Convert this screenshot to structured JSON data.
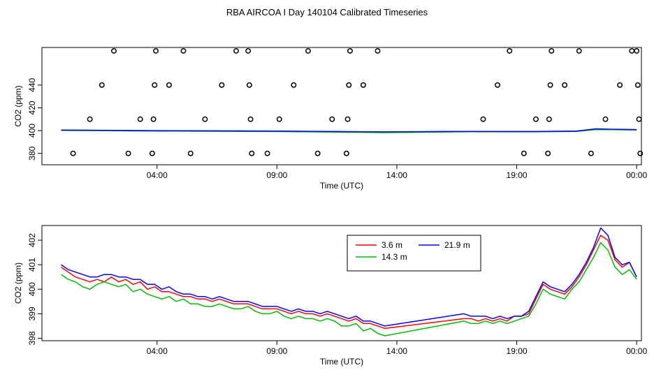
{
  "title": "RBA AIRCOA I  Day 140104  Calibrated Timeseries",
  "chart_data": [
    {
      "type": "scatter",
      "xlabel": "Time (UTC)",
      "ylabel": "CO2 (ppm)",
      "x_unit": "hours UTC",
      "xlim": [
        -0.8,
        24.2
      ],
      "ylim": [
        370,
        473
      ],
      "x_ticks": [
        {
          "v": 4,
          "label": "04:00"
        },
        {
          "v": 9,
          "label": "09:00"
        },
        {
          "v": 14,
          "label": "14:00"
        },
        {
          "v": 19,
          "label": "19:00"
        },
        {
          "v": 24,
          "label": "00:00"
        }
      ],
      "y_ticks": [
        {
          "v": 380,
          "label": "380"
        },
        {
          "v": 400,
          "label": "400"
        },
        {
          "v": 420,
          "label": "420"
        },
        {
          "v": 440,
          "label": "440"
        }
      ],
      "points": [
        [
          0.5,
          380
        ],
        [
          1.2,
          410
        ],
        [
          1.7,
          440
        ],
        [
          2.2,
          470
        ],
        [
          2.8,
          380
        ],
        [
          3.3,
          410
        ],
        [
          3.8,
          380
        ],
        [
          3.85,
          410
        ],
        [
          3.9,
          440
        ],
        [
          3.95,
          470
        ],
        [
          4.5,
          440
        ],
        [
          5.1,
          470
        ],
        [
          5.4,
          380
        ],
        [
          6.0,
          410
        ],
        [
          6.7,
          440
        ],
        [
          7.3,
          470
        ],
        [
          7.8,
          470
        ],
        [
          7.85,
          440
        ],
        [
          7.9,
          410
        ],
        [
          7.95,
          380
        ],
        [
          8.6,
          380
        ],
        [
          9.1,
          410
        ],
        [
          9.7,
          440
        ],
        [
          10.3,
          470
        ],
        [
          10.7,
          380
        ],
        [
          11.3,
          410
        ],
        [
          11.9,
          380
        ],
        [
          11.95,
          410
        ],
        [
          12.0,
          440
        ],
        [
          12.05,
          470
        ],
        [
          12.6,
          440
        ],
        [
          13.2,
          470
        ],
        [
          17.6,
          410
        ],
        [
          18.2,
          440
        ],
        [
          18.7,
          470
        ],
        [
          19.3,
          380
        ],
        [
          19.8,
          410
        ],
        [
          20.3,
          380
        ],
        [
          20.35,
          410
        ],
        [
          20.4,
          440
        ],
        [
          20.45,
          470
        ],
        [
          21.0,
          440
        ],
        [
          21.6,
          470
        ],
        [
          22.1,
          380
        ],
        [
          22.7,
          410
        ],
        [
          23.3,
          440
        ],
        [
          23.8,
          470
        ],
        [
          24.0,
          470
        ],
        [
          24.05,
          440
        ],
        [
          24.1,
          410
        ],
        [
          24.15,
          380
        ]
      ],
      "series": [
        {
          "name": "3.6 m",
          "color": "#ff0000",
          "x": [
            0,
            4,
            9,
            13.5,
            17,
            19.5,
            21.5,
            22.3,
            23,
            24
          ],
          "values": [
            400.3,
            399.9,
            399.5,
            398.7,
            399.2,
            399.1,
            399.5,
            401.2,
            401.0,
            400.8
          ]
        },
        {
          "name": "14.3 m",
          "color": "#00bb00",
          "x": [
            0,
            4,
            9,
            13.5,
            17,
            19.5,
            21.5,
            22.3,
            23,
            24
          ],
          "values": [
            400.1,
            399.6,
            399.2,
            398.2,
            399.0,
            398.9,
            399.3,
            400.9,
            400.8,
            400.5
          ]
        },
        {
          "name": "21.9 m",
          "color": "#0000ff",
          "x": [
            0,
            4,
            9,
            13.5,
            17,
            19.5,
            21.5,
            22.3,
            23,
            24
          ],
          "values": [
            400.5,
            400.0,
            399.6,
            398.9,
            399.3,
            399.2,
            399.6,
            401.6,
            401.2,
            400.9
          ]
        }
      ]
    },
    {
      "type": "line",
      "xlabel": "Time (UTC)",
      "ylabel": "CO2 (ppm)",
      "x_unit": "hours UTC",
      "xlim": [
        -0.8,
        24.2
      ],
      "ylim": [
        397.9,
        402.6
      ],
      "x_ticks": [
        {
          "v": 4,
          "label": "04:00"
        },
        {
          "v": 9,
          "label": "09:00"
        },
        {
          "v": 14,
          "label": "14:00"
        },
        {
          "v": 19,
          "label": "19:00"
        },
        {
          "v": 24,
          "label": "00:00"
        }
      ],
      "y_ticks": [
        {
          "v": 398,
          "label": "398"
        },
        {
          "v": 399,
          "label": "399"
        },
        {
          "v": 400,
          "label": "400"
        },
        {
          "v": 401,
          "label": "401"
        },
        {
          "v": 402,
          "label": "402"
        }
      ],
      "legend": {
        "position": "top-right",
        "entries": [
          "3.6 m",
          "21.9 m",
          "14.3 m"
        ]
      },
      "series": [
        {
          "name": "3.6 m",
          "color": "#ff0000",
          "x": [
            0,
            0.3,
            0.6,
            0.9,
            1.2,
            1.5,
            1.8,
            2.1,
            2.4,
            2.7,
            3.0,
            3.3,
            3.6,
            3.9,
            4.2,
            4.5,
            4.8,
            5.1,
            5.4,
            5.7,
            6.0,
            6.3,
            6.6,
            6.9,
            7.2,
            7.5,
            7.8,
            8.1,
            8.4,
            8.7,
            9.0,
            9.3,
            9.6,
            9.9,
            10.2,
            10.5,
            10.8,
            11.1,
            11.4,
            11.7,
            12.0,
            12.3,
            12.6,
            12.9,
            13.2,
            13.5,
            16.8,
            17.1,
            17.4,
            17.7,
            18.0,
            18.3,
            18.6,
            18.9,
            19.2,
            19.5,
            19.8,
            20.1,
            20.4,
            20.7,
            21.0,
            21.3,
            21.6,
            21.9,
            22.2,
            22.5,
            22.8,
            23.1,
            23.4,
            23.7,
            24.0
          ],
          "values": [
            400.9,
            400.7,
            400.5,
            400.4,
            400.3,
            400.4,
            400.3,
            400.5,
            400.3,
            400.4,
            400.2,
            400.3,
            400.0,
            400.1,
            399.9,
            399.9,
            399.8,
            399.7,
            399.7,
            399.6,
            399.6,
            399.5,
            399.6,
            399.5,
            399.4,
            399.4,
            399.4,
            399.3,
            399.2,
            399.2,
            399.2,
            399.1,
            399.0,
            399.1,
            399.0,
            399.0,
            398.9,
            399.0,
            398.9,
            398.8,
            398.7,
            398.8,
            398.6,
            398.6,
            398.5,
            398.4,
            398.8,
            398.8,
            398.7,
            398.8,
            398.7,
            398.8,
            398.7,
            398.9,
            398.9,
            399.0,
            399.6,
            400.2,
            400.0,
            399.9,
            399.8,
            400.1,
            400.5,
            401.0,
            401.6,
            402.2,
            402.0,
            401.2,
            400.9,
            401.1,
            400.5
          ]
        },
        {
          "name": "14.3 m",
          "color": "#00bb00",
          "x": [
            0,
            0.3,
            0.6,
            0.9,
            1.2,
            1.5,
            1.8,
            2.1,
            2.4,
            2.7,
            3.0,
            3.3,
            3.6,
            3.9,
            4.2,
            4.5,
            4.8,
            5.1,
            5.4,
            5.7,
            6.0,
            6.3,
            6.6,
            6.9,
            7.2,
            7.5,
            7.8,
            8.1,
            8.4,
            8.7,
            9.0,
            9.3,
            9.6,
            9.9,
            10.2,
            10.5,
            10.8,
            11.1,
            11.4,
            11.7,
            12.0,
            12.3,
            12.6,
            12.9,
            13.2,
            13.5,
            16.8,
            17.1,
            17.4,
            17.7,
            18.0,
            18.3,
            18.6,
            18.9,
            19.2,
            19.5,
            19.8,
            20.1,
            20.4,
            20.7,
            21.0,
            21.3,
            21.6,
            21.9,
            22.2,
            22.5,
            22.8,
            23.1,
            23.4,
            23.7,
            24.0
          ],
          "values": [
            400.6,
            400.4,
            400.3,
            400.1,
            400.0,
            400.2,
            400.3,
            400.2,
            400.1,
            400.2,
            399.9,
            400.0,
            399.8,
            399.7,
            399.6,
            399.7,
            399.5,
            399.6,
            399.4,
            399.4,
            399.3,
            399.3,
            399.4,
            399.3,
            399.2,
            399.2,
            399.3,
            399.1,
            399.0,
            399.0,
            399.1,
            398.9,
            398.8,
            398.9,
            398.8,
            398.8,
            398.7,
            398.8,
            398.7,
            398.5,
            398.5,
            398.6,
            398.3,
            398.4,
            398.2,
            398.1,
            398.7,
            398.6,
            398.6,
            398.7,
            398.6,
            398.7,
            398.6,
            398.7,
            398.8,
            398.9,
            399.4,
            400.0,
            399.8,
            399.7,
            399.6,
            400.0,
            400.3,
            400.8,
            401.3,
            401.9,
            401.6,
            400.9,
            400.6,
            400.8,
            400.4
          ]
        },
        {
          "name": "21.9 m",
          "color": "#0000ff",
          "x": [
            0,
            0.3,
            0.6,
            0.9,
            1.2,
            1.5,
            1.8,
            2.1,
            2.4,
            2.7,
            3.0,
            3.3,
            3.6,
            3.9,
            4.2,
            4.5,
            4.8,
            5.1,
            5.4,
            5.7,
            6.0,
            6.3,
            6.6,
            6.9,
            7.2,
            7.5,
            7.8,
            8.1,
            8.4,
            8.7,
            9.0,
            9.3,
            9.6,
            9.9,
            10.2,
            10.5,
            10.8,
            11.1,
            11.4,
            11.7,
            12.0,
            12.3,
            12.6,
            12.9,
            13.2,
            13.5,
            16.8,
            17.1,
            17.4,
            17.7,
            18.0,
            18.3,
            18.6,
            18.9,
            19.2,
            19.5,
            19.8,
            20.1,
            20.4,
            20.7,
            21.0,
            21.3,
            21.6,
            21.9,
            22.2,
            22.5,
            22.8,
            23.1,
            23.4,
            23.7,
            24.0
          ],
          "values": [
            401.0,
            400.8,
            400.7,
            400.6,
            400.5,
            400.5,
            400.6,
            400.6,
            400.5,
            400.5,
            400.4,
            400.4,
            400.2,
            400.2,
            400.0,
            400.1,
            399.9,
            399.8,
            399.8,
            399.7,
            399.7,
            399.6,
            399.7,
            399.6,
            399.5,
            399.5,
            399.5,
            399.4,
            399.3,
            399.3,
            399.3,
            399.2,
            399.1,
            399.2,
            399.1,
            399.1,
            399.0,
            399.1,
            399.0,
            398.9,
            398.8,
            398.9,
            398.7,
            398.7,
            398.6,
            398.5,
            399.0,
            398.9,
            398.9,
            398.9,
            398.8,
            398.9,
            398.8,
            398.9,
            398.9,
            399.1,
            399.7,
            400.3,
            400.1,
            400.0,
            399.9,
            400.2,
            400.6,
            401.1,
            401.7,
            402.5,
            402.2,
            401.3,
            401.0,
            401.1,
            400.5
          ]
        }
      ]
    }
  ]
}
